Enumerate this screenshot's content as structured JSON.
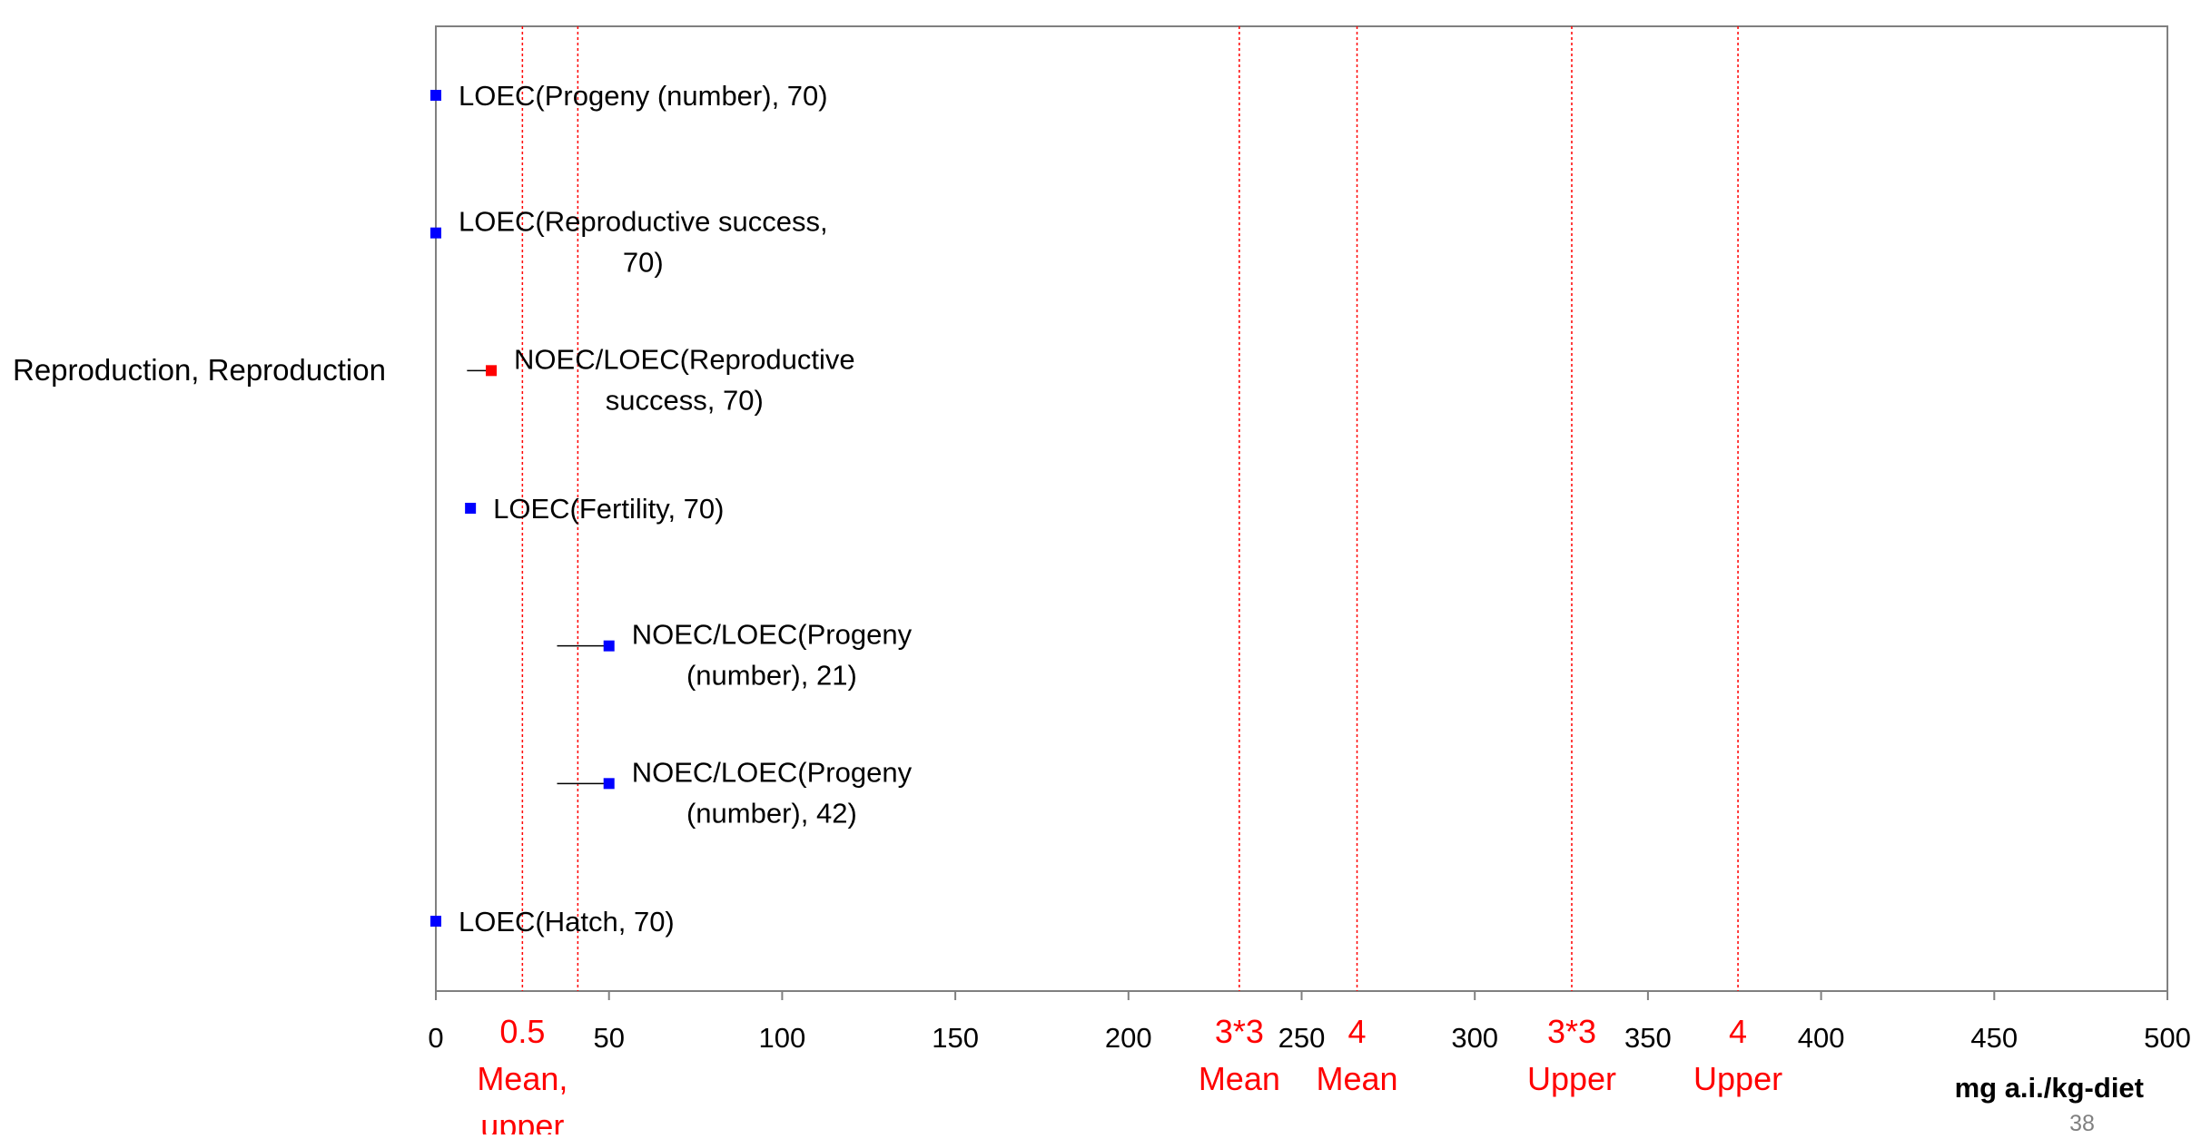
{
  "chart_data": {
    "type": "scatter",
    "category_label": "Reproduction, Reproduction",
    "xlabel": "mg a.i./kg-diet",
    "xlim": [
      0,
      500
    ],
    "xticks": [
      "0",
      "50",
      "100",
      "150",
      "200",
      "250",
      "300",
      "350",
      "400",
      "450",
      "500"
    ],
    "points": [
      {
        "label_lines": [
          "LOEC(Progeny (number), 70)"
        ],
        "value": 0,
        "range_low": null,
        "color": "#0000ff"
      },
      {
        "label_lines": [
          "LOEC(Reproductive success,",
          "70)"
        ],
        "value": 0,
        "range_low": null,
        "color": "#0000ff"
      },
      {
        "label_lines": [
          "NOEC/LOEC(Reproductive",
          "success, 70)"
        ],
        "value": 16,
        "range_low": 9,
        "color": "#ff0000"
      },
      {
        "label_lines": [
          "LOEC(Fertility, 70)"
        ],
        "value": 10,
        "range_low": null,
        "color": "#0000ff"
      },
      {
        "label_lines": [
          "NOEC/LOEC(Progeny",
          "(number), 21)"
        ],
        "value": 50,
        "range_low": 35,
        "color": "#0000ff"
      },
      {
        "label_lines": [
          "NOEC/LOEC(Progeny",
          "(number), 42)"
        ],
        "value": 50,
        "range_low": 35,
        "color": "#0000ff"
      },
      {
        "label_lines": [
          "LOEC(Hatch, 70)"
        ],
        "value": 0,
        "range_low": null,
        "color": "#0000ff"
      }
    ],
    "reference_lines": [
      {
        "value": 25,
        "label_lines": [
          "0.5",
          "Mean,",
          "upper"
        ]
      },
      {
        "value": 41,
        "label_lines": []
      },
      {
        "value": 232,
        "label_lines": [
          "3*3",
          "Mean"
        ]
      },
      {
        "value": 266,
        "label_lines": [
          "4",
          "Mean"
        ]
      },
      {
        "value": 328,
        "label_lines": [
          "3*3",
          "Upper"
        ]
      },
      {
        "value": 376,
        "label_lines": [
          "4",
          "Upper"
        ]
      }
    ],
    "grid": false,
    "legend": "none"
  },
  "page_number": "38",
  "colors": {
    "reference_line": "#ff0000",
    "axis": "#808080",
    "text": "#000000",
    "page_number": "#808080"
  }
}
